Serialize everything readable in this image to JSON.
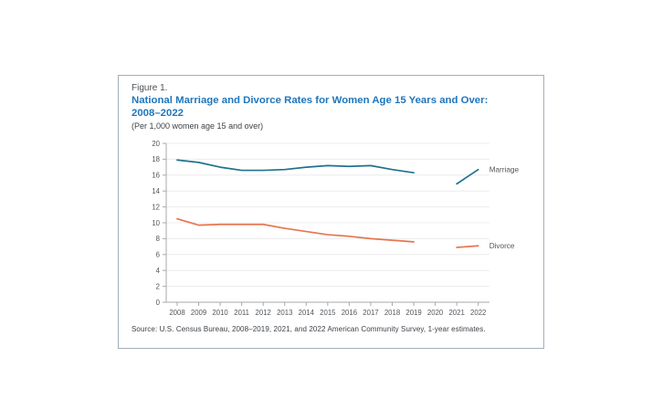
{
  "figure": {
    "label": "Figure 1.",
    "title_lines": [
      "National Marriage and Divorce Rates for Women Age 15 Years and Over:",
      "2008–2022"
    ],
    "subtitle": "(Per 1,000 women age 15 and over)",
    "source": "Source: U.S. Census Bureau, 2008–2019, 2021, and 2022 American Community Survey, 1-year estimates."
  },
  "chart_data": {
    "type": "line",
    "title": "National Marriage and Divorce Rates for Women Age 15 Years and Over: 2008–2022",
    "subtitle": "(Per 1,000 women age 15 and over)",
    "categories": [
      "2008",
      "2009",
      "2010",
      "2011",
      "2012",
      "2013",
      "2014",
      "2015",
      "2016",
      "2017",
      "2018",
      "2019",
      "2020",
      "2021",
      "2022"
    ],
    "series": [
      {
        "name": "Marriage",
        "color": "#20718f",
        "values": [
          17.9,
          17.6,
          17.0,
          16.6,
          16.6,
          16.7,
          17.0,
          17.2,
          17.1,
          17.2,
          16.7,
          16.3,
          null,
          14.9,
          16.7
        ]
      },
      {
        "name": "Divorce",
        "color": "#e5764f",
        "values": [
          10.5,
          9.7,
          9.8,
          9.8,
          9.8,
          9.3,
          8.9,
          8.5,
          8.3,
          8.0,
          7.8,
          7.6,
          null,
          6.9,
          7.1
        ]
      }
    ],
    "xlabel": "",
    "ylabel": "",
    "ylim": [
      0,
      20
    ],
    "ytick_step": 2,
    "grid": true,
    "note": "No data for 2020; lines break between 2019 and 2021",
    "legend_position": "end-of-line-right"
  },
  "colors": {
    "title": "#2076bc",
    "figure_label": "#4a4f55",
    "marriage_line": "#20718f",
    "divorce_line": "#e5764f",
    "axis": "#a6a9ad",
    "grid": "#ececec",
    "tick_text": "#52575c",
    "legend_text": "#52575c",
    "border": "#a3aeba"
  }
}
